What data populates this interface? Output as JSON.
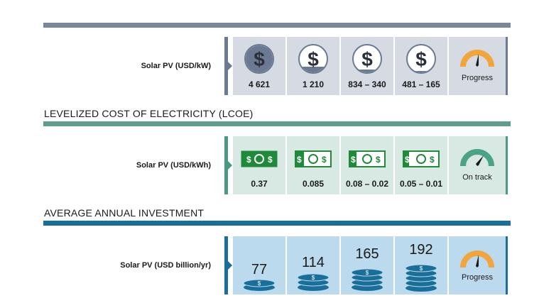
{
  "colors": {
    "top_bar": "#7a8699",
    "cost_cell": "#d6dbe3",
    "cost_accent": "#6b7a92",
    "lcoe_bar": "#5f9e8f",
    "lcoe_cell": "#d8e8e2",
    "lcoe_accent": "#4a9a83",
    "invest_bar": "#1a6f9a",
    "invest_cell": "#bcdaee",
    "invest_accent": "#1a6f9a",
    "gauge_orange": "#f2a53a",
    "gauge_green": "#4aa386",
    "money_green": "#1f8a3a"
  },
  "rows": {
    "cost": {
      "label": "Solar PV (USD/kW)",
      "values": [
        "4 621",
        "1 210",
        "834 – 340",
        "481 – 165"
      ],
      "gauge_label": "Progress",
      "icon": "dollar-coin-icon"
    },
    "lcoe": {
      "title": "LEVELIZED COST OF ELECTRICITY (LCOE)",
      "label": "Solar PV (USD/kWh)",
      "values": [
        "0.37",
        "0.085",
        "0.08 – 0.02",
        "0.05 – 0.01"
      ],
      "gauge_label": "On track",
      "icon": "banknote-icon"
    },
    "invest": {
      "title": "AVERAGE ANNUAL INVESTMENT",
      "label": "Solar PV  (USD billion/yr)",
      "values": [
        "77",
        "114",
        "165",
        "192"
      ],
      "stack_heights": [
        2,
        3,
        4,
        5
      ],
      "gauge_label": "Progress",
      "icon": "coin-stack-icon"
    }
  }
}
